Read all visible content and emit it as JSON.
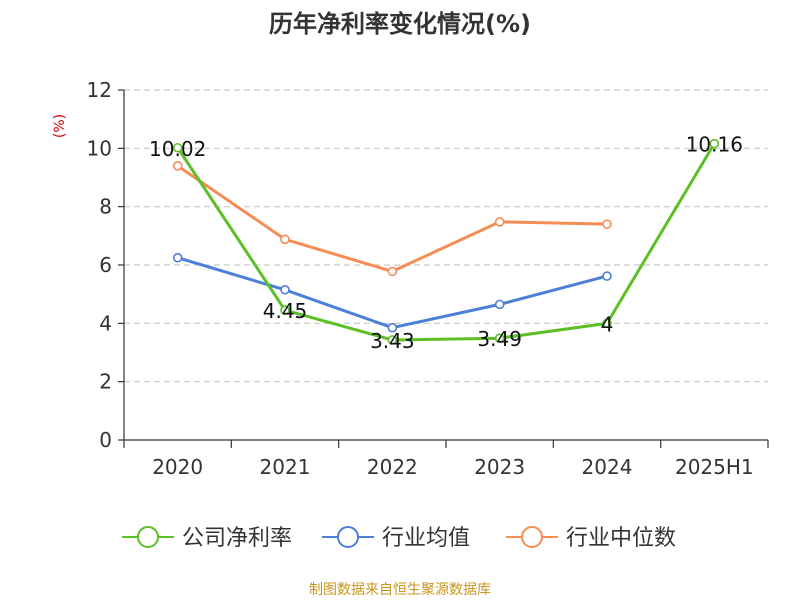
{
  "chart_data": {
    "type": "line",
    "title": "历年净利率变化情况(%)",
    "ylabel": "(%)",
    "xlabel": "",
    "categories": [
      "2020",
      "2021",
      "2022",
      "2023",
      "2024",
      "2025H1"
    ],
    "ylim": [
      0,
      12
    ],
    "yticks": [
      0,
      2,
      4,
      6,
      8,
      10,
      12
    ],
    "grid": true,
    "legend_position": "bottom",
    "series": [
      {
        "name": "公司净利率",
        "color": "#5cbf26",
        "values": [
          10.02,
          4.45,
          3.43,
          3.49,
          4,
          10.16
        ],
        "labels": [
          "10.02",
          "4.45",
          "3.43",
          "3.49",
          "4",
          "10.16"
        ]
      },
      {
        "name": "行业均值",
        "color": "#4c7fd8",
        "values": [
          6.25,
          5.15,
          3.85,
          4.65,
          5.62,
          null
        ]
      },
      {
        "name": "行业中位数",
        "color": "#f58d55",
        "values": [
          9.4,
          6.88,
          5.78,
          7.48,
          7.4,
          null
        ]
      }
    ]
  },
  "source_note": "制图数据来自恒生聚源数据库"
}
